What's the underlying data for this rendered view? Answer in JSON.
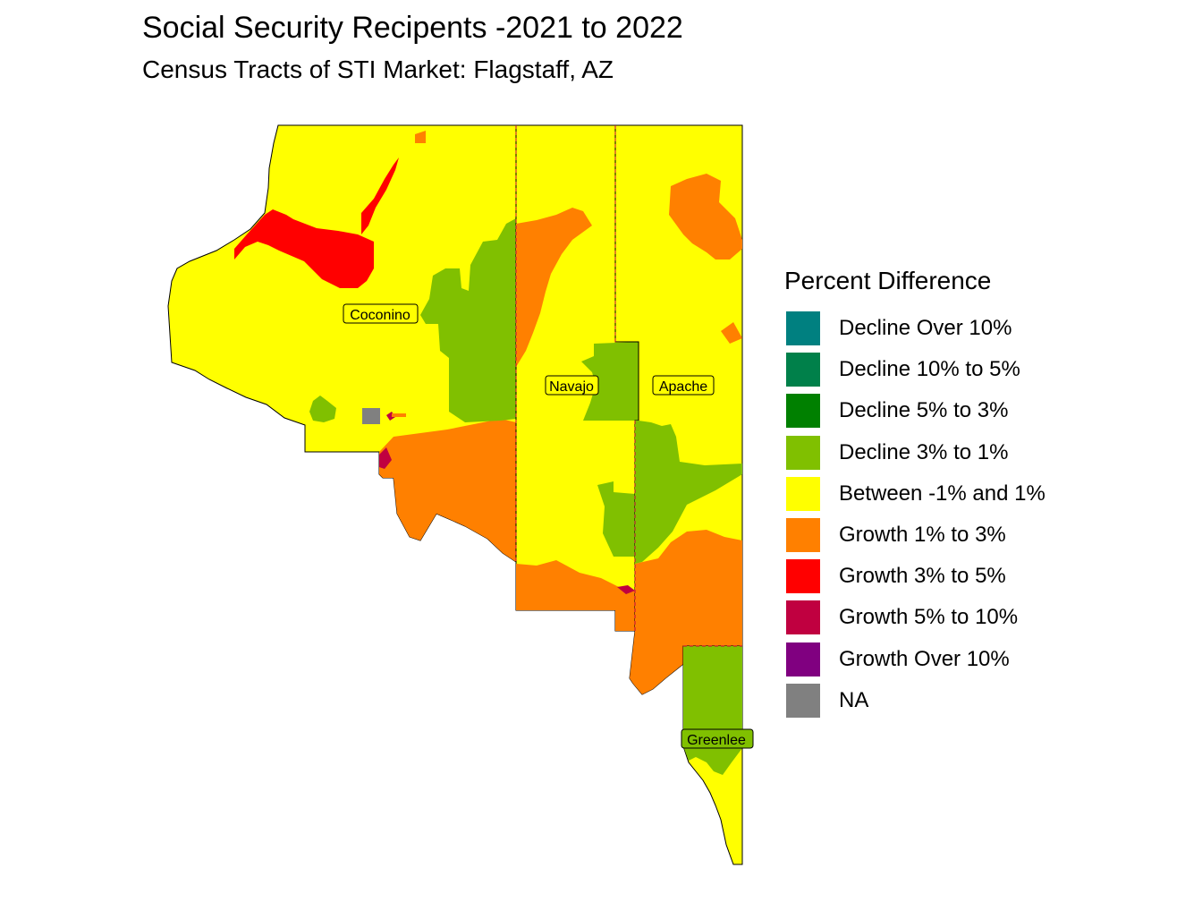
{
  "title": "Social Security Recipents -2021 to 2022",
  "subtitle": "Census Tracts of STI Market: Flagstaff, AZ",
  "legend": {
    "title": "Percent Difference",
    "items": [
      {
        "label": "Decline Over 10%",
        "color": "#008080"
      },
      {
        "label": "Decline 10% to 5%",
        "color": "#00804A"
      },
      {
        "label": "Decline 5% to 3%",
        "color": "#008000"
      },
      {
        "label": "Decline 3% to 1%",
        "color": "#80C000"
      },
      {
        "label": "Between -1% and 1%",
        "color": "#FFFF00"
      },
      {
        "label": "Growth 1% to 3%",
        "color": "#FF8000"
      },
      {
        "label": "Growth 3% to 5%",
        "color": "#FF0000"
      },
      {
        "label": "Growth 5% to 10%",
        "color": "#C00040"
      },
      {
        "label": "Growth Over 10%",
        "color": "#800080"
      },
      {
        "label": "NA",
        "color": "#808080"
      }
    ]
  },
  "counties": {
    "coconino": "Coconino",
    "navajo": "Navajo",
    "apache": "Apache",
    "greenlee": "Greenlee"
  }
}
